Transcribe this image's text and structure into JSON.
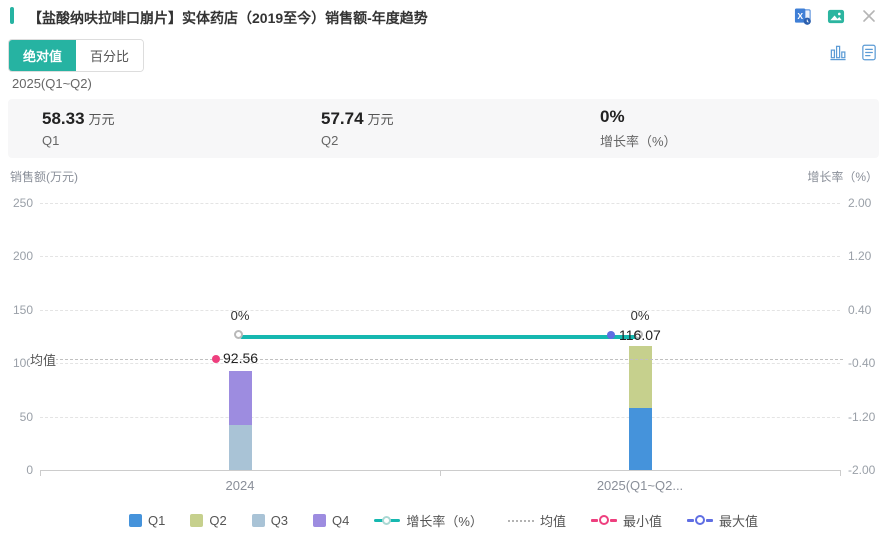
{
  "header": {
    "title": "【盐酸纳呋拉啡口崩片】实体药店（2019至今）销售额-年度趋势",
    "accent_color": "#26b3a2",
    "icons": [
      "excel-export-icon",
      "image-export-icon",
      "close-icon"
    ]
  },
  "toolbar": {
    "tabs": [
      {
        "label": "绝对值",
        "active": true
      },
      {
        "label": "百分比",
        "active": false
      }
    ],
    "active_color": "#26b3a2",
    "view_icons": [
      "bar-chart-view-icon",
      "report-view-icon"
    ]
  },
  "summary": {
    "period": "2025(Q1~Q2)",
    "stats": [
      {
        "value": "58.33",
        "unit": "万元",
        "label": "Q1"
      },
      {
        "value": "57.74",
        "unit": "万元",
        "label": "Q2"
      },
      {
        "value": "0%",
        "unit": "",
        "label": "增长率（%）"
      }
    ]
  },
  "chart_data": {
    "type": "bar",
    "categories": [
      "2024",
      "2025(Q1~Q2..."
    ],
    "series": [
      {
        "name": "Q1",
        "color": "#4593db",
        "values": [
          0,
          58.33
        ]
      },
      {
        "name": "Q2",
        "color": "#c6d08d",
        "values": [
          0,
          57.74
        ]
      },
      {
        "name": "Q3",
        "color": "#a9c3d6",
        "values": [
          42.1,
          0
        ]
      },
      {
        "name": "Q4",
        "color": "#9d8ce0",
        "values": [
          50.46,
          0
        ]
      }
    ],
    "stack_totals": [
      92.56,
      116.07
    ],
    "growth_line": {
      "name": "增长率（%）",
      "color": "#16b8b0",
      "values": [
        0,
        0
      ],
      "labels": [
        "0%",
        "0%"
      ]
    },
    "mean": {
      "label": "均值",
      "value": 104.32
    },
    "min_marker": {
      "name": "最小值",
      "color": "#ee3f7e",
      "category_index": 0,
      "value": 92.56,
      "label": "92.56"
    },
    "max_marker": {
      "name": "最大值",
      "color": "#5f6ee3",
      "category_index": 1,
      "value": 116.07,
      "label": "116.07"
    },
    "y_left": {
      "title": "销售额(万元)",
      "ticks": [
        "250",
        "200",
        "150",
        "100",
        "50",
        "0"
      ],
      "range": [
        0,
        250
      ]
    },
    "y_right": {
      "title": "增长率（%）",
      "ticks": [
        "2.00",
        "1.20",
        "0.40",
        "-0.40",
        "-1.20",
        "-2.00"
      ],
      "range": [
        -2,
        2
      ]
    },
    "grid": true,
    "legend_position": "bottom"
  },
  "legend": {
    "items": [
      {
        "label": "Q1",
        "marker": "square",
        "color": "#4593db"
      },
      {
        "label": "Q2",
        "marker": "square",
        "color": "#c6d08d"
      },
      {
        "label": "Q3",
        "marker": "square",
        "color": "#a9c3d6"
      },
      {
        "label": "Q4",
        "marker": "square",
        "color": "#9d8ce0"
      },
      {
        "label": "增长率（%）",
        "marker": "line-circle",
        "color": "#16b8b0"
      },
      {
        "label": "均值",
        "marker": "dashed",
        "color": "#b3b3b3"
      },
      {
        "label": "最小值",
        "marker": "ring",
        "color": "#ee3f7e"
      },
      {
        "label": "最大值",
        "marker": "ring",
        "color": "#5f6ee3"
      }
    ]
  }
}
